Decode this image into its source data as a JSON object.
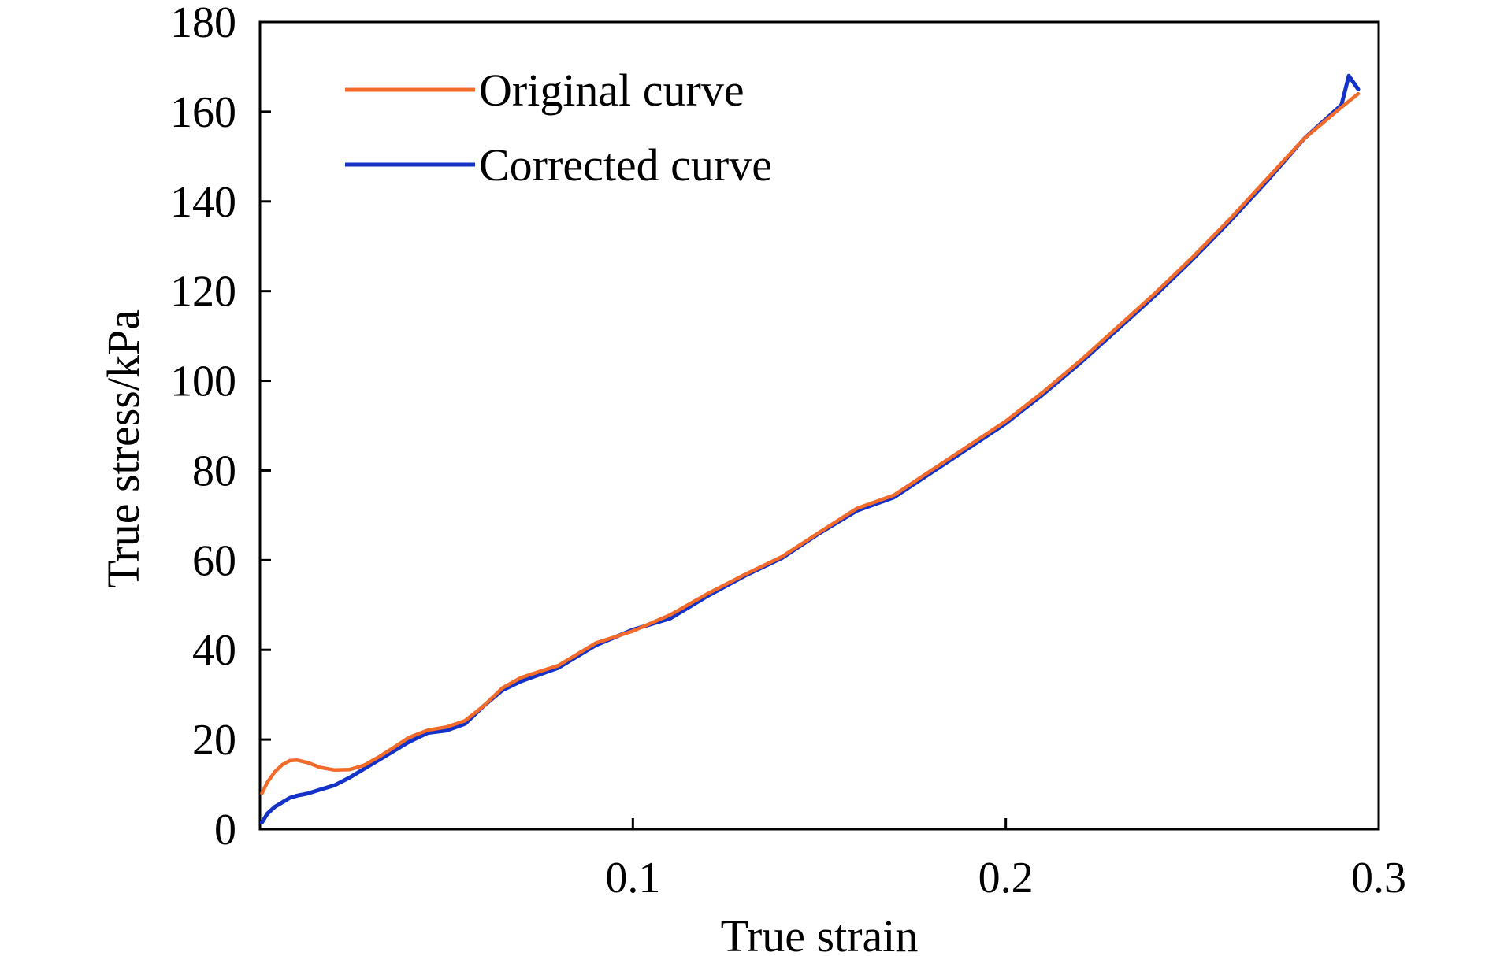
{
  "chart_data": {
    "type": "line",
    "title": "",
    "xlabel": "True strain",
    "ylabel": "True stress/kPa",
    "xlim": [
      0,
      0.3
    ],
    "ylim": [
      0,
      180
    ],
    "xticks": [
      0.1,
      0.2,
      0.3
    ],
    "xtick_labels": [
      "0.1",
      "0.2",
      "0.3"
    ],
    "yticks": [
      0,
      20,
      40,
      60,
      80,
      100,
      120,
      140,
      160,
      180
    ],
    "ytick_labels": [
      "0",
      "20",
      "40",
      "60",
      "80",
      "100",
      "120",
      "140",
      "160",
      "180"
    ],
    "grid": false,
    "legend_position": "top-left",
    "series": [
      {
        "name": "Original curve",
        "color": "#f26b2a",
        "x": [
          0.0005,
          0.002,
          0.004,
          0.006,
          0.008,
          0.01,
          0.013,
          0.016,
          0.02,
          0.024,
          0.028,
          0.032,
          0.036,
          0.04,
          0.045,
          0.05,
          0.055,
          0.06,
          0.065,
          0.07,
          0.075,
          0.08,
          0.09,
          0.1,
          0.11,
          0.12,
          0.13,
          0.14,
          0.15,
          0.16,
          0.17,
          0.18,
          0.19,
          0.2,
          0.21,
          0.22,
          0.23,
          0.24,
          0.25,
          0.26,
          0.27,
          0.28,
          0.29,
          0.2945
        ],
        "y": [
          8,
          10.5,
          12.8,
          14.4,
          15.3,
          15.4,
          14.8,
          13.8,
          13.2,
          13.3,
          14.3,
          16.2,
          18.3,
          20.5,
          22.1,
          22.8,
          24.2,
          27.5,
          31.5,
          33.8,
          35.2,
          36.5,
          41.5,
          44.2,
          47.8,
          52.5,
          56.8,
          60.8,
          66.2,
          71.5,
          74.5,
          80,
          85.5,
          91,
          97.5,
          104.5,
          112,
          119.5,
          127.5,
          136,
          145,
          154,
          161,
          164
        ]
      },
      {
        "name": "Corrected curve",
        "color": "#1432c8",
        "x": [
          0.0005,
          0.002,
          0.004,
          0.006,
          0.008,
          0.01,
          0.013,
          0.016,
          0.02,
          0.024,
          0.028,
          0.032,
          0.036,
          0.04,
          0.045,
          0.05,
          0.055,
          0.06,
          0.065,
          0.07,
          0.075,
          0.08,
          0.09,
          0.1,
          0.11,
          0.12,
          0.13,
          0.14,
          0.15,
          0.16,
          0.17,
          0.18,
          0.19,
          0.2,
          0.21,
          0.22,
          0.23,
          0.24,
          0.25,
          0.26,
          0.27,
          0.28,
          0.29,
          0.292,
          0.2945
        ],
        "y": [
          1.5,
          3.5,
          5,
          6,
          7,
          7.5,
          8,
          8.8,
          9.8,
          11.5,
          13.5,
          15.5,
          17.5,
          19.5,
          21.5,
          22,
          23.5,
          27.5,
          31,
          33,
          34.5,
          36,
          41,
          44.5,
          47,
          52,
          56.5,
          60.5,
          66,
          71,
          74,
          79.5,
          85,
          90.5,
          97,
          104,
          111.5,
          119,
          127,
          135.5,
          144.5,
          154,
          161.5,
          168,
          165
        ]
      }
    ]
  }
}
